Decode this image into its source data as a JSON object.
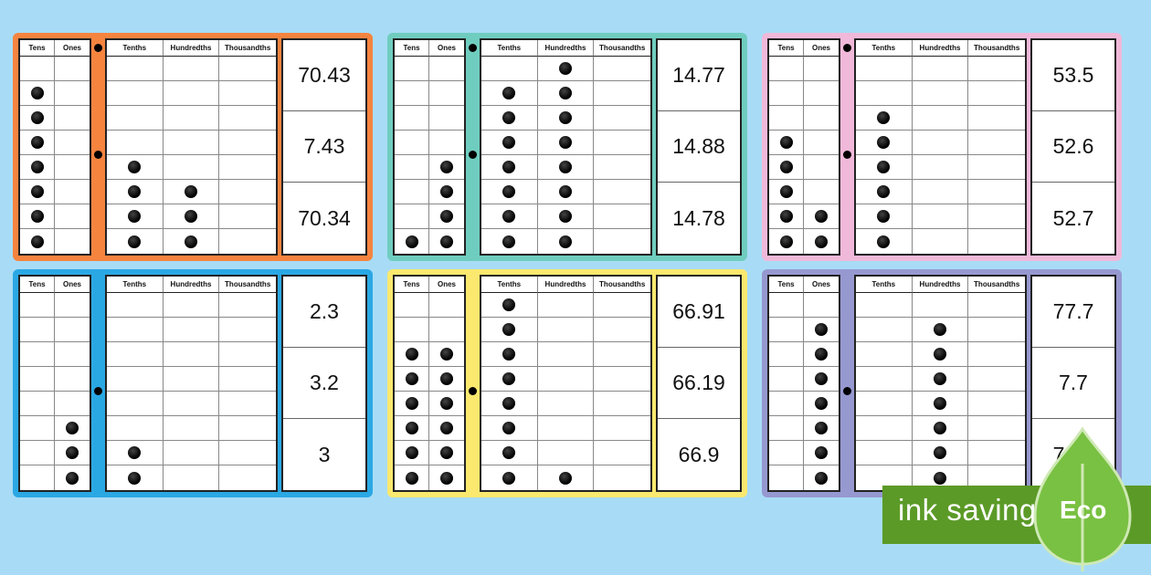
{
  "headers": {
    "tens": "Tens",
    "ones": "Ones",
    "tenths": "Tenths",
    "hundredths": "Hundredths",
    "thousandths": "Thousandths"
  },
  "cards": [
    {
      "color": "#f5843f",
      "dots": [
        7,
        0,
        4,
        3,
        0
      ],
      "answers": [
        "70.43",
        "7.43",
        "70.34"
      ]
    },
    {
      "color": "#6fcdbf",
      "dots": [
        1,
        4,
        7,
        8,
        0
      ],
      "answers": [
        "14.77",
        "14.88",
        "14.78"
      ]
    },
    {
      "color": "#f0b8d9",
      "dots": [
        5,
        2,
        6,
        0,
        0
      ],
      "answers": [
        "53.5",
        "52.6",
        "52.7"
      ]
    },
    {
      "color": "#2aa8e4",
      "dots": [
        0,
        3,
        2,
        0,
        0
      ],
      "answers": [
        "2.3",
        "3.2",
        "3"
      ]
    },
    {
      "color": "#fbe86e",
      "dots": [
        6,
        6,
        9,
        1,
        0
      ],
      "answers": [
        "66.91",
        "66.19",
        "66.9"
      ]
    },
    {
      "color": "#9698d0",
      "dots": [
        0,
        7,
        0,
        7,
        0
      ],
      "answers": [
        "77.7",
        "7.7",
        "7.77"
      ]
    }
  ],
  "badge": {
    "text": "ink saving",
    "label": "Eco",
    "color": "#5b9a27"
  }
}
